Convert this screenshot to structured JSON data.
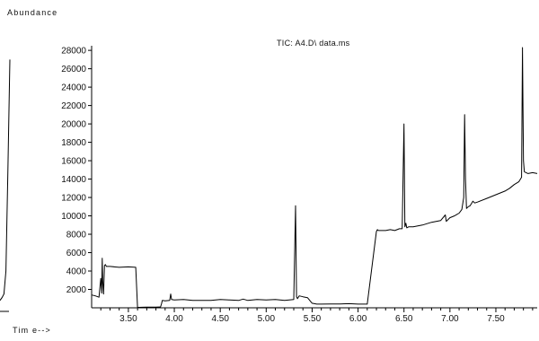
{
  "chart_data": {
    "type": "line",
    "title": "TIC: A4.D\\ data.ms",
    "ylabel": "Abundance",
    "xlabel": "Tim e-->",
    "xlim": [
      3.1,
      7.95
    ],
    "ylim": [
      0,
      28500
    ],
    "x_ticks": [
      3.5,
      4.0,
      4.5,
      5.0,
      5.5,
      6.0,
      6.5,
      7.0,
      7.5
    ],
    "x_tick_labels": [
      "3.50",
      "4.00",
      "4.50",
      "5.00",
      "5.50",
      "6.00",
      "6.50",
      "7.00",
      "7.50"
    ],
    "y_ticks": [
      2000,
      4000,
      6000,
      8000,
      10000,
      12000,
      14000,
      16000,
      18000,
      20000,
      22000,
      24000,
      26000,
      28000
    ],
    "y_tick_labels": [
      "2000",
      "4000",
      "6000",
      "8000",
      "10000",
      "12000",
      "14000",
      "16000",
      "18000",
      "20000",
      "22000",
      "24000",
      "26000",
      "28000"
    ],
    "grid": false,
    "legend": "none",
    "line_color": "#000000",
    "series": [
      {
        "x": [
          3.1,
          3.14,
          3.18,
          3.2,
          3.21,
          3.215,
          3.22,
          3.23,
          3.24,
          3.25,
          3.26,
          3.27,
          3.3,
          3.4,
          3.5,
          3.58,
          3.6,
          3.62,
          3.65,
          3.7,
          3.8,
          3.85,
          3.86,
          3.87,
          3.9,
          3.95,
          3.96,
          3.97,
          4.0,
          4.1,
          4.2,
          4.3,
          4.4,
          4.5,
          4.6,
          4.7,
          4.75,
          4.8,
          4.9,
          5.0,
          5.1,
          5.2,
          5.3,
          5.32,
          5.33,
          5.34,
          5.36,
          5.4,
          5.45,
          5.5,
          5.55,
          5.6,
          5.7,
          5.8,
          5.9,
          6.0,
          6.1,
          6.2,
          6.21,
          6.22,
          6.25,
          6.3,
          6.35,
          6.4,
          6.45,
          6.48,
          6.5,
          6.51,
          6.52,
          6.53,
          6.55,
          6.6,
          6.7,
          6.8,
          6.9,
          6.95,
          6.96,
          7.0,
          7.05,
          7.1,
          7.13,
          7.15,
          7.16,
          7.17,
          7.18,
          7.2,
          7.22,
          7.25,
          7.27,
          7.3,
          7.4,
          7.5,
          7.6,
          7.65,
          7.7,
          7.75,
          7.78,
          7.79,
          7.8,
          7.81,
          7.83,
          7.85,
          7.9,
          7.95
        ],
        "y": [
          1400,
          1300,
          1150,
          3200,
          1600,
          5400,
          3000,
          1500,
          4600,
          4700,
          4500,
          4500,
          4500,
          4400,
          4450,
          4400,
          50,
          50,
          60,
          70,
          80,
          100,
          400,
          800,
          750,
          800,
          1500,
          900,
          850,
          900,
          800,
          800,
          800,
          900,
          850,
          800,
          950,
          800,
          900,
          850,
          900,
          800,
          900,
          11100,
          1200,
          1000,
          1300,
          1200,
          1100,
          500,
          400,
          400,
          420,
          420,
          450,
          400,
          400,
          8300,
          8500,
          8400,
          8400,
          8400,
          8500,
          8400,
          8600,
          8600,
          20000,
          8800,
          9200,
          8700,
          8800,
          8800,
          9000,
          9300,
          9500,
          10100,
          9400,
          9800,
          10000,
          10300,
          10700,
          12000,
          21000,
          14000,
          10800,
          11000,
          11100,
          11600,
          11400,
          11500,
          11900,
          12300,
          12700,
          13000,
          13400,
          13700,
          14200,
          28300,
          16000,
          14800,
          14700,
          14600,
          14700,
          14600
        ]
      }
    ],
    "clipped_prior_peak": {
      "x": [
        3.0,
        3.02,
        3.04,
        3.06,
        3.08,
        3.1
      ],
      "y": [
        800,
        1100,
        1500,
        4000,
        15000,
        27000
      ]
    }
  }
}
